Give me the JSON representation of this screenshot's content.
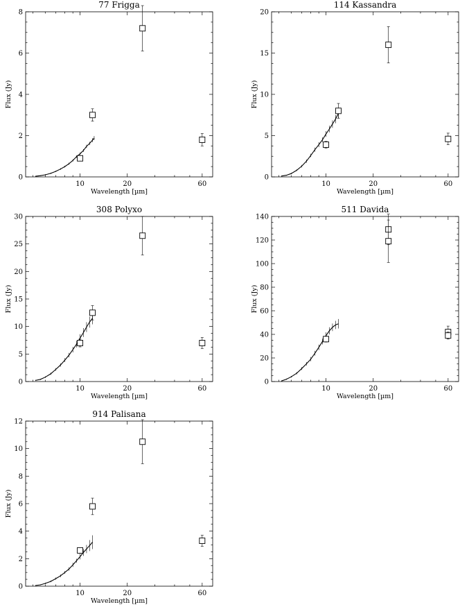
{
  "chart_data": [
    {
      "type": "scatter",
      "title": "77 Frigga",
      "xlabel": "Wavelength [µm]",
      "ylabel": "Flux (Jy)",
      "xscale": "log",
      "xlim": [
        4.5,
        70
      ],
      "ylim": [
        0,
        8
      ],
      "xticks": [
        10,
        20,
        60
      ],
      "yticks": [
        0,
        2,
        4,
        6,
        8
      ],
      "spectrum": {
        "x": [
          5.2,
          5.6,
          6,
          6.5,
          7,
          7.5,
          8,
          8.5,
          9,
          9.5,
          10,
          10.5,
          11,
          11.5,
          12,
          12.3
        ],
        "y": [
          0.03,
          0.06,
          0.1,
          0.17,
          0.27,
          0.38,
          0.5,
          0.64,
          0.8,
          0.98,
          1.12,
          1.28,
          1.48,
          1.62,
          1.78,
          1.88
        ],
        "yerr": [
          0.02,
          0.02,
          0.03,
          0.03,
          0.03,
          0.04,
          0.04,
          0.05,
          0.05,
          0.06,
          0.06,
          0.07,
          0.08,
          0.08,
          0.1,
          0.1
        ]
      },
      "points": [
        {
          "x": 10.0,
          "y": 0.9,
          "err": 0.1
        },
        {
          "x": 12.0,
          "y": 3.0,
          "err": 0.3
        },
        {
          "x": 25.0,
          "y": 7.2,
          "err": 1.1
        },
        {
          "x": 60.0,
          "y": 1.8,
          "err": 0.3
        }
      ]
    },
    {
      "type": "scatter",
      "title": "114 Kassandra",
      "xlabel": "Wavelength [µm]",
      "ylabel": "Flux (Jy)",
      "xscale": "log",
      "xlim": [
        4.5,
        70
      ],
      "ylim": [
        0,
        20
      ],
      "xticks": [
        10,
        20,
        60
      ],
      "yticks": [
        0,
        5,
        10,
        15,
        20
      ],
      "spectrum": {
        "x": [
          5.2,
          5.6,
          6,
          6.5,
          7,
          7.5,
          8,
          8.5,
          9,
          9.5,
          10,
          10.5,
          11,
          11.5,
          12
        ],
        "y": [
          0.1,
          0.2,
          0.4,
          0.8,
          1.3,
          1.9,
          2.6,
          3.3,
          3.9,
          4.5,
          5.2,
          5.8,
          6.4,
          7.0,
          7.7
        ],
        "yerr": [
          0.05,
          0.05,
          0.08,
          0.1,
          0.15,
          0.2,
          0.2,
          0.25,
          0.3,
          0.3,
          0.35,
          0.4,
          0.45,
          0.5,
          0.6
        ]
      },
      "points": [
        {
          "x": 10.0,
          "y": 3.9,
          "err": 0.4
        },
        {
          "x": 12.0,
          "y": 8.0,
          "err": 0.9
        },
        {
          "x": 25.0,
          "y": 16.0,
          "err": 2.2
        },
        {
          "x": 60.0,
          "y": 4.6,
          "err": 0.7
        }
      ]
    },
    {
      "type": "scatter",
      "title": "308 Polyxo",
      "xlabel": "Wavelength [µm]",
      "ylabel": "Flux (Jy)",
      "xscale": "log",
      "xlim": [
        4.5,
        70
      ],
      "ylim": [
        0,
        30
      ],
      "xticks": [
        10,
        20,
        60
      ],
      "yticks": [
        0,
        5,
        10,
        15,
        20,
        25,
        30
      ],
      "spectrum": {
        "x": [
          5.2,
          5.6,
          6,
          6.5,
          7,
          7.5,
          8,
          8.5,
          9,
          9.5,
          10,
          10.5,
          11,
          11.5,
          12
        ],
        "y": [
          0.2,
          0.4,
          0.8,
          1.4,
          2.2,
          3.0,
          3.9,
          4.8,
          5.8,
          6.8,
          7.9,
          8.9,
          9.9,
          10.8,
          11.5
        ],
        "yerr": [
          0.1,
          0.1,
          0.15,
          0.2,
          0.25,
          0.3,
          0.35,
          0.4,
          0.5,
          0.6,
          0.7,
          0.8,
          0.9,
          1.0,
          1.1
        ]
      },
      "points": [
        {
          "x": 10.0,
          "y": 7.0,
          "err": 0.7
        },
        {
          "x": 12.0,
          "y": 12.5,
          "err": 1.3
        },
        {
          "x": 25.0,
          "y": 26.5,
          "err": 3.5
        },
        {
          "x": 60.0,
          "y": 7.0,
          "err": 1.0
        }
      ]
    },
    {
      "type": "scatter",
      "title": "511 Davida",
      "xlabel": "Wavelength [µm]",
      "ylabel": "Flux (Jy)",
      "xscale": "log",
      "xlim": [
        4.5,
        70
      ],
      "ylim": [
        0,
        140
      ],
      "xticks": [
        10,
        20,
        60
      ],
      "yticks": [
        0,
        20,
        40,
        60,
        80,
        100,
        120,
        140
      ],
      "spectrum": {
        "x": [
          5.2,
          5.6,
          6,
          6.5,
          7,
          7.5,
          8,
          8.5,
          9,
          9.5,
          10,
          10.5,
          11,
          11.5,
          12
        ],
        "y": [
          0.5,
          2,
          4,
          7,
          11,
          15,
          19,
          24,
          29,
          34,
          39,
          43,
          46,
          48,
          49
        ],
        "yerr": [
          0.3,
          0.5,
          0.7,
          1,
          1.2,
          1.5,
          1.8,
          2,
          2.3,
          2.5,
          2.8,
          3,
          3.2,
          3.5,
          4
        ]
      },
      "points": [
        {
          "x": 10.0,
          "y": 36,
          "err": 2.5
        },
        {
          "x": 25.0,
          "y": 129,
          "err": 13
        },
        {
          "x": 25.0,
          "y": 119,
          "err": 18
        },
        {
          "x": 60.0,
          "y": 42,
          "err": 5
        },
        {
          "x": 60.0,
          "y": 39,
          "err": 3
        }
      ]
    },
    {
      "type": "scatter",
      "title": "914 Palisana",
      "xlabel": "Wavelength [µm]",
      "ylabel": "Flux (Jy)",
      "xscale": "log",
      "xlim": [
        4.5,
        70
      ],
      "ylim": [
        0,
        12
      ],
      "xticks": [
        10,
        20,
        60
      ],
      "yticks": [
        0,
        2,
        4,
        6,
        8,
        10,
        12
      ],
      "spectrum": {
        "x": [
          5.2,
          5.6,
          6,
          6.5,
          7,
          7.5,
          8,
          8.5,
          9,
          9.5,
          10,
          10.5,
          11,
          11.5,
          12
        ],
        "y": [
          0.05,
          0.1,
          0.2,
          0.35,
          0.55,
          0.75,
          1.0,
          1.25,
          1.55,
          1.85,
          2.15,
          2.45,
          2.7,
          2.95,
          3.2
        ],
        "yerr": [
          0.03,
          0.03,
          0.05,
          0.06,
          0.08,
          0.1,
          0.1,
          0.12,
          0.15,
          0.15,
          0.2,
          0.25,
          0.3,
          0.4,
          0.5
        ]
      },
      "points": [
        {
          "x": 10.0,
          "y": 2.6,
          "err": 0.2
        },
        {
          "x": 12.0,
          "y": 5.8,
          "err": 0.6
        },
        {
          "x": 25.0,
          "y": 10.5,
          "err": 1.6
        },
        {
          "x": 60.0,
          "y": 3.3,
          "err": 0.4
        }
      ]
    }
  ]
}
